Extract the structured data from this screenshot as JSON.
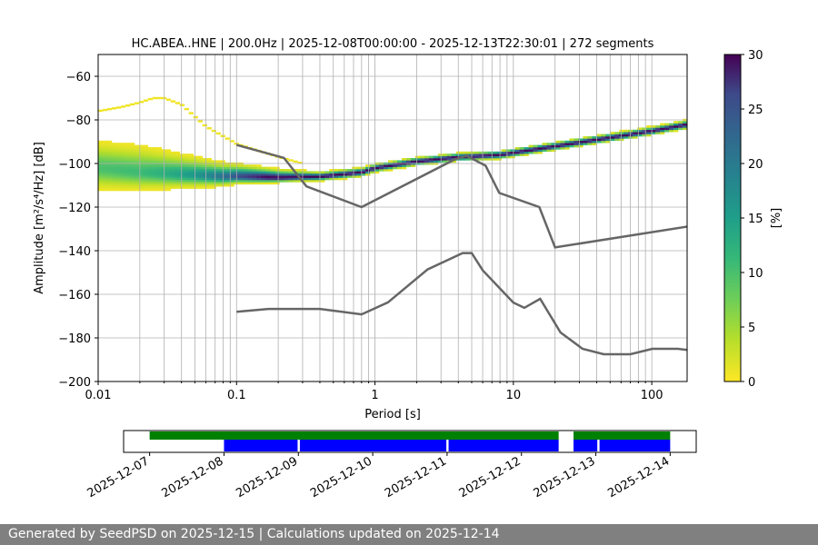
{
  "title": "HC.ABEA..HNE | 200.0Hz | 2025-12-08T00:00:00 - 2025-12-13T22:30:01 | 272 segments",
  "footer": "Generated by SeedPSD on 2025-12-15 | Calculations updated on 2025-12-14",
  "chart_data": [
    {
      "type": "heatmap",
      "title": "HC.ABEA..HNE | 200.0Hz | 2025-12-08T00:00:00 - 2025-12-13T22:30:01 | 272 segments",
      "xlabel": "Period [s]",
      "ylabel": "Amplitude [m²/s⁴/Hz] [dB]",
      "xscale": "log",
      "xlim": [
        0.01,
        180
      ],
      "ylim": [
        -200,
        -50
      ],
      "xticks": [
        {
          "v": 0.01,
          "label": "0.01"
        },
        {
          "v": 0.1,
          "label": "0.1"
        },
        {
          "v": 1,
          "label": "1"
        },
        {
          "v": 10,
          "label": "10"
        },
        {
          "v": 100,
          "label": "100"
        }
      ],
      "yticks": [
        -200,
        -180,
        -160,
        -140,
        -120,
        -100,
        -80,
        -60
      ],
      "grid": true,
      "colorbar": {
        "label": "[%]",
        "min": 0,
        "max": 30,
        "ticks": [
          0,
          5,
          10,
          15,
          20,
          25,
          30
        ],
        "colormap": "viridis_r"
      },
      "noise_models": [
        {
          "name": "NHNM",
          "x": [
            0.1,
            0.22,
            0.32,
            0.8,
            3.8,
            4.6,
            6.3,
            7.9,
            15.4,
            20,
            354.8
          ],
          "y": [
            -91.5,
            -97.4,
            -110.5,
            -120,
            -98,
            -96.5,
            -101,
            -113.5,
            -120,
            -138.5,
            -126
          ]
        },
        {
          "name": "NLNM",
          "x": [
            0.1,
            0.17,
            0.4,
            0.8,
            1.24,
            2.4,
            4.3,
            5,
            6,
            10,
            12,
            15.6,
            21.9,
            31.6,
            45,
            70,
            101,
            154,
            328
          ],
          "y": [
            -168,
            -166.7,
            -166.7,
            -169.2,
            -163.7,
            -148.6,
            -141.1,
            -141.1,
            -149,
            -163.8,
            -166.2,
            -162.1,
            -177.5,
            -185,
            -187.5,
            -187.5,
            -185,
            -185,
            -187.5
          ]
        }
      ],
      "mode_curve": {
        "x": [
          0.01,
          0.02,
          0.04,
          0.08,
          0.1,
          0.2,
          0.4,
          0.8,
          1,
          2,
          4,
          8,
          10,
          20,
          40,
          80,
          100,
          180
        ],
        "y": [
          -102,
          -104,
          -105,
          -106,
          -106,
          -106.5,
          -106,
          -104,
          -102,
          -99,
          -97,
          -96,
          -95,
          -92,
          -89,
          -86,
          -85,
          -82
        ]
      },
      "spread_band": {
        "x": [
          0.01,
          0.02,
          0.04,
          0.08,
          0.1,
          0.2,
          0.4,
          0.8,
          1,
          2,
          4,
          8,
          10,
          20,
          40,
          80,
          100,
          180
        ],
        "upper": [
          -90,
          -92,
          -96,
          -100,
          -100.5,
          -103,
          -104,
          -102,
          -101,
          -98,
          -96,
          -95,
          -94,
          -91,
          -88,
          -84.5,
          -83.5,
          -80.5
        ],
        "lower": [
          -112,
          -112,
          -111,
          -110,
          -109,
          -108.5,
          -107.5,
          -105.5,
          -103.5,
          -100,
          -98,
          -97,
          -96,
          -93,
          -90,
          -87,
          -86,
          -84
        ]
      },
      "outlier_curve": {
        "x": [
          0.01,
          0.015,
          0.02,
          0.025,
          0.03,
          0.04,
          0.06,
          0.1,
          0.2,
          0.3
        ],
        "y": [
          -76,
          -74,
          -72,
          -70,
          -70,
          -73,
          -83,
          -91,
          -97,
          -100
        ]
      }
    },
    {
      "type": "bar",
      "title": "",
      "xlabel": "",
      "ylabel": "",
      "xticks": [
        "2025-12-07",
        "2025-12-08",
        "2025-12-09",
        "2025-12-10",
        "2025-12-11",
        "2025-12-12",
        "2025-12-13",
        "2025-12-14"
      ],
      "xlim_days": [
        -0.35,
        7.35
      ],
      "series": [
        {
          "color": "#008000",
          "intervals": [
            [
              0,
              5.5
            ],
            [
              5.7,
              7
            ]
          ]
        },
        {
          "color": "#0000ff",
          "intervals": [
            [
              1,
              1.99
            ],
            [
              2.02,
              3.99
            ],
            [
              4.02,
              5.5
            ],
            [
              5.7,
              6.02
            ],
            [
              6.05,
              7
            ]
          ]
        }
      ]
    }
  ]
}
